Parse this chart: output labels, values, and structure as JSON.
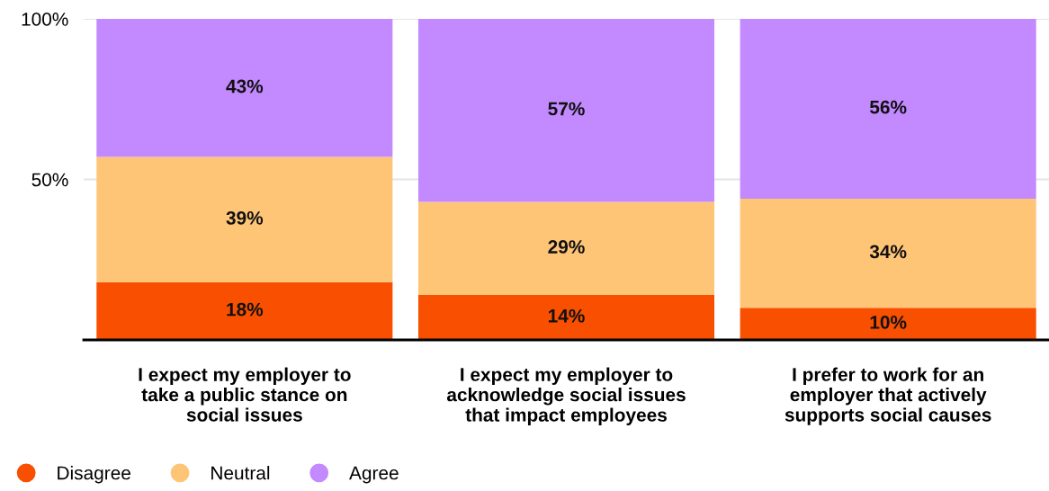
{
  "chart_data": {
    "type": "bar",
    "stacked": true,
    "categories": [
      "I expect my employer to\ntake a public stance on\nsocial issues",
      "I expect my employer to\nacknowledge social issues\nthat impact employees",
      "I prefer to work for an\nemployer that actively\nsupports social causes"
    ],
    "series": [
      {
        "name": "Disagree",
        "color": "#f94f00",
        "values": [
          18,
          14,
          10
        ],
        "value_labels": [
          "18%",
          "14%",
          "10%"
        ]
      },
      {
        "name": "Neutral",
        "color": "#ffc577",
        "values": [
          39,
          29,
          34
        ],
        "value_labels": [
          "39%",
          "29%",
          "34%"
        ]
      },
      {
        "name": "Agree",
        "color": "#c389ff",
        "values": [
          43,
          57,
          56
        ],
        "value_labels": [
          "43%",
          "57%",
          "56%"
        ]
      }
    ],
    "ylim": [
      0,
      100
    ],
    "yticks": [
      {
        "value": 0,
        "label": null
      },
      {
        "value": 50,
        "label": "50%"
      },
      {
        "value": 100,
        "label": "100%"
      }
    ],
    "grid": "y",
    "legend": "bottom left",
    "marker": "circle"
  }
}
